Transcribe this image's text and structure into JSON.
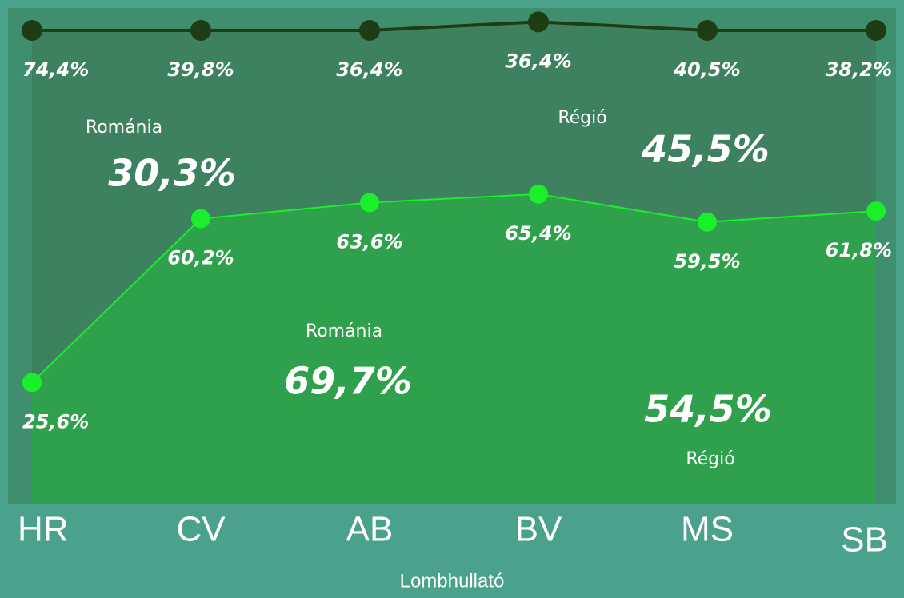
{
  "chart_data": {
    "type": "stacked-line",
    "x_label": "Lombhullató",
    "categories": [
      "HR",
      "CV",
      "AB",
      "BV",
      "MS",
      "SB"
    ],
    "ylim": [
      0,
      100
    ],
    "series": [
      {
        "color": "#19f02a",
        "values": [
          25.6,
          60.2,
          63.6,
          65.4,
          59.5,
          61.8
        ],
        "value_labels": [
          "25,6%",
          "60,2%",
          "63,6%",
          "65,4%",
          "59,5%",
          "61,8%"
        ]
      },
      {
        "color": "#1f3d14",
        "values": [
          74.4,
          39.8,
          36.4,
          36.4,
          40.5,
          38.2
        ],
        "value_labels": [
          "74,4%",
          "39,8%",
          "36,4%",
          "36,4%",
          "40,5%",
          "38,2%"
        ]
      }
    ],
    "annotations": [
      {
        "text": "Románia",
        "value_label": "30,3%"
      },
      {
        "text": "Régió",
        "value_label": "45,5%"
      },
      {
        "text": "Románia",
        "value_label": "69,7%"
      },
      {
        "text": "Régió",
        "value_label": "54,5%"
      }
    ]
  }
}
